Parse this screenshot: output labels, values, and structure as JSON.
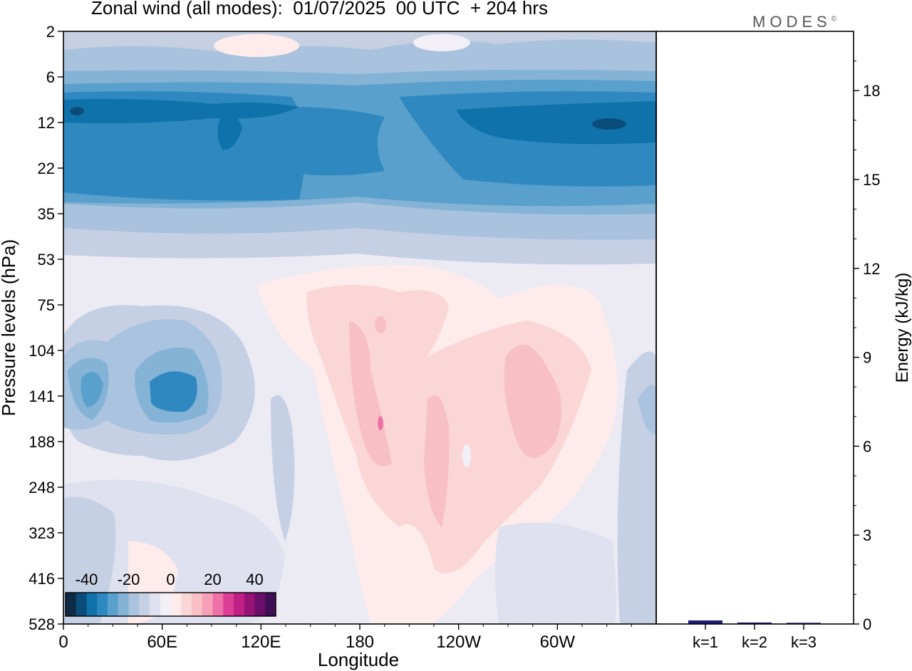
{
  "title": "Zonal wind (all modes):  01/07/2025  00 UTC  + 204 hrs",
  "brand": "MODES",
  "brand_mark": "©",
  "chart_data": [
    {
      "type": "heatmap",
      "variable": "Zonal wind",
      "xlabel": "Longitude",
      "ylabel": "Pressure levels (hPa)",
      "x_ticks": [
        "0",
        "60E",
        "120E",
        "180",
        "120W",
        "60W"
      ],
      "y_ticks": [
        "2",
        "6",
        "12",
        "22",
        "35",
        "53",
        "75",
        "104",
        "141",
        "188",
        "248",
        "323",
        "416",
        "528"
      ],
      "y_scale": "log",
      "colorbar": {
        "tick_labels": [
          "-40",
          "-20",
          "0",
          "20",
          "40"
        ],
        "levels": [
          -45,
          -40,
          -35,
          -30,
          -25,
          -20,
          -15,
          -10,
          -5,
          0,
          5,
          10,
          15,
          20,
          25,
          30,
          35,
          40,
          45
        ],
        "colors": [
          "#0d2b45",
          "#0a4d7a",
          "#0f72ab",
          "#2f89c0",
          "#5aa0cc",
          "#85b3d6",
          "#aac3de",
          "#c6d0e4",
          "#dfe1ee",
          "#f3eff6",
          "#fdeceb",
          "#fbd6d6",
          "#f8bfc4",
          "#f6a0b8",
          "#ee72a8",
          "#dd3f96",
          "#c01f84",
          "#961277",
          "#6a0d6b",
          "#3f0f55"
        ],
        "placement": "bottom-left inset"
      },
      "features": [
        {
          "description": "strong easterlies",
          "value_range": [
            -40,
            -25
          ],
          "pressure_hPa": [
            8,
            30
          ],
          "longitude": "all"
        },
        {
          "description": "moderate easterlies",
          "value_range": [
            -20,
            -10
          ],
          "pressure_hPa": [
            2,
            45
          ],
          "longitude": "all"
        },
        {
          "description": "easterly core",
          "value_range": [
            -25,
            -20
          ],
          "pressure_hPa": [
            110,
            170
          ],
          "longitude": [
            "10E",
            "70E"
          ]
        },
        {
          "description": "westerly region",
          "value_range": [
            5,
            15
          ],
          "pressure_hPa": [
            80,
            350
          ],
          "longitude": [
            "170E",
            "50W"
          ]
        }
      ]
    },
    {
      "type": "bar",
      "categories": [
        "k=1",
        "k=2",
        "k=3"
      ],
      "values": [
        0.12,
        0.05,
        0.04
      ],
      "ylabel": "Energy (kJ/kg)",
      "ylim": [
        0,
        20
      ],
      "y_ticks": [
        0,
        3,
        6,
        9,
        12,
        15,
        18
      ],
      "bar_colors": [
        "#1a1a7a",
        "#1a1a7a",
        "#1a1a7a"
      ]
    }
  ]
}
